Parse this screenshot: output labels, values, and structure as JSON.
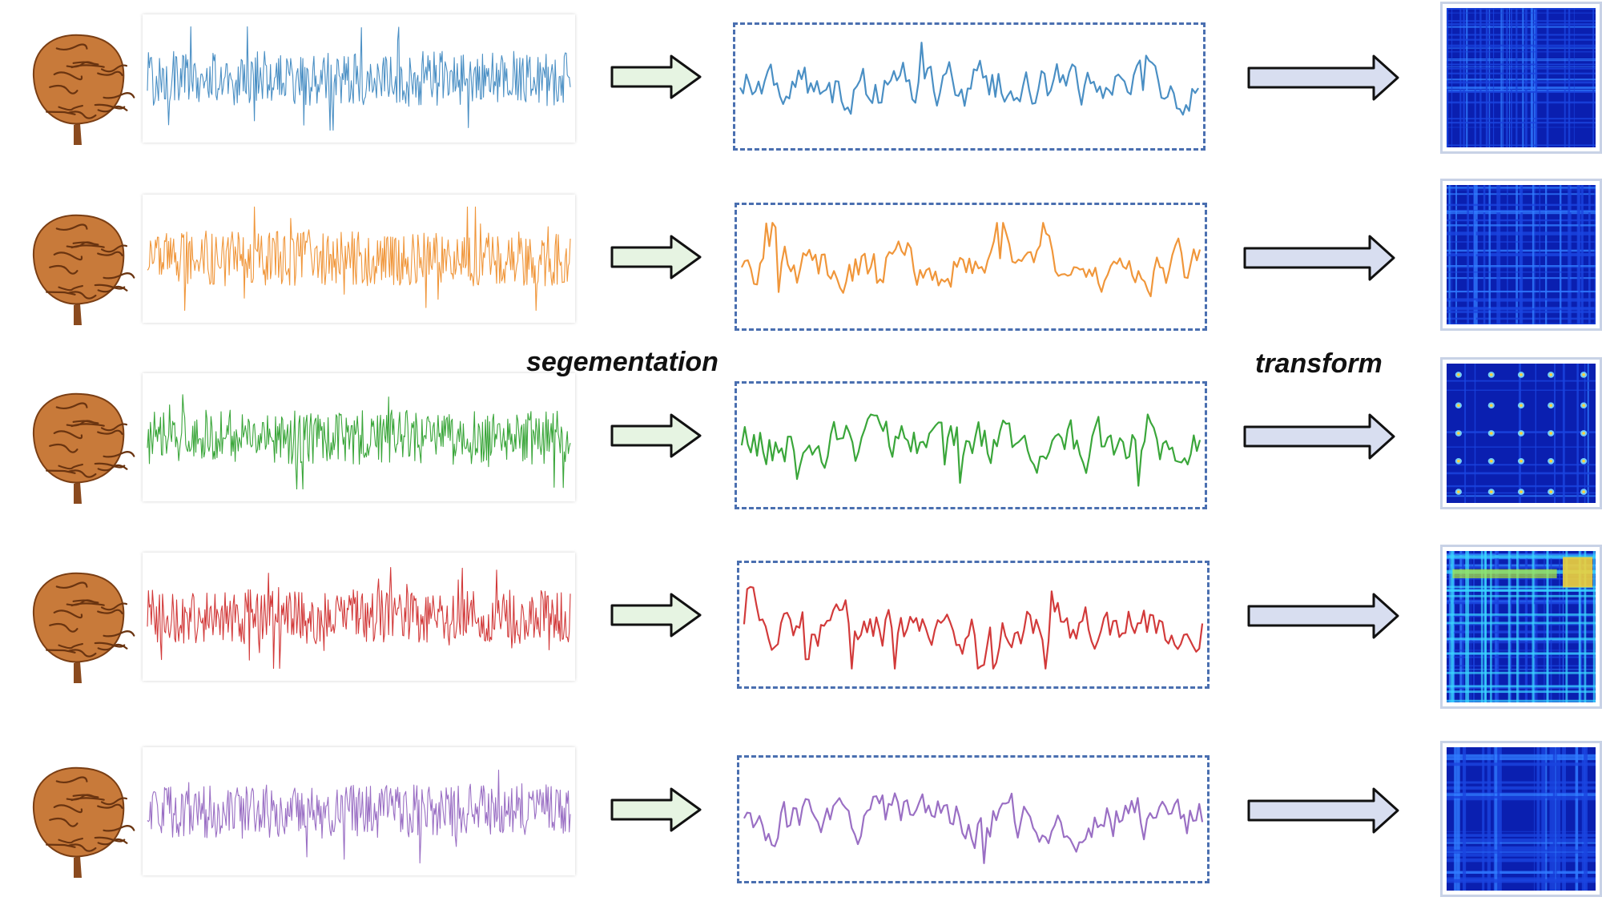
{
  "labels": {
    "segmentation": "segementation",
    "transform": "transform"
  },
  "colors": {
    "blue": "#4a8fc4",
    "orange": "#f0963a",
    "green": "#3aa63a",
    "red": "#d23a3a",
    "purple": "#9a6fc4",
    "seg_border": "#4a6fb0",
    "green_arrow_fill": "#e6f4e2",
    "blue_arrow_fill": "#d8def0",
    "brain": "#c87a3a"
  },
  "rows": [
    {
      "id": "row-1",
      "color_key": "blue",
      "heatmap_style": "fine"
    },
    {
      "id": "row-2",
      "color_key": "orange",
      "heatmap_style": "fine"
    },
    {
      "id": "row-3",
      "color_key": "green",
      "heatmap_style": "spots"
    },
    {
      "id": "row-4",
      "color_key": "red",
      "heatmap_style": "bright"
    },
    {
      "id": "row-5",
      "color_key": "purple",
      "heatmap_style": "grid"
    }
  ]
}
